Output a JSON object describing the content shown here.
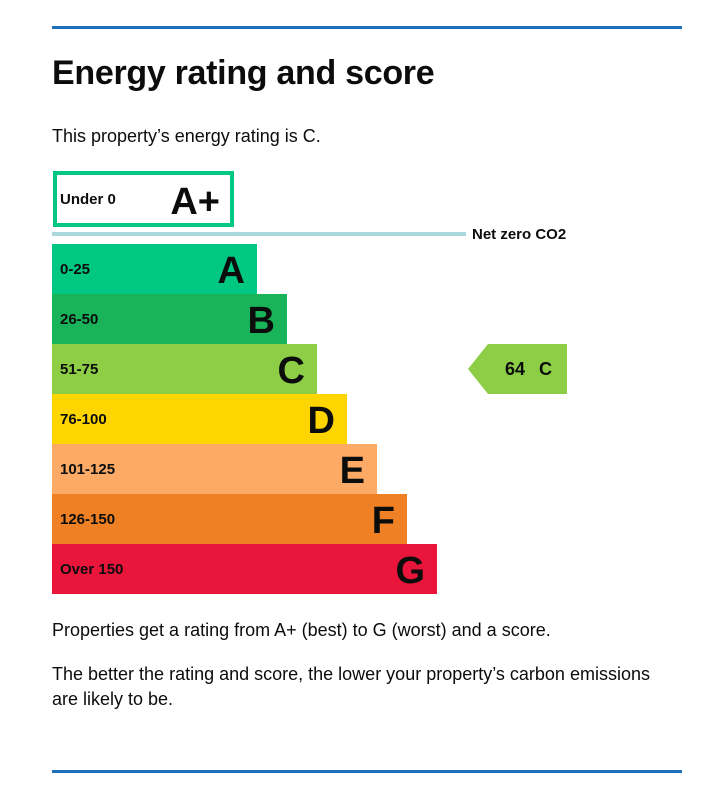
{
  "header": {
    "title": "Energy rating and score",
    "intro": "This property’s energy rating is C."
  },
  "chart_data": {
    "type": "bar",
    "title": "",
    "bands": [
      {
        "letter": "A+",
        "range": "Under 0",
        "color": "#00c781",
        "outlined": true
      },
      {
        "letter": "A",
        "range": "0-25",
        "color": "#00c781"
      },
      {
        "letter": "B",
        "range": "26-50",
        "color": "#19b459"
      },
      {
        "letter": "C",
        "range": "51-75",
        "color": "#8dce46"
      },
      {
        "letter": "D",
        "range": "76-100",
        "color": "#ffd500"
      },
      {
        "letter": "E",
        "range": "101-125",
        "color": "#fcaa65"
      },
      {
        "letter": "F",
        "range": "126-150",
        "color": "#ef8023"
      },
      {
        "letter": "G",
        "range": "Over 150",
        "color": "#e9153b"
      }
    ],
    "net_zero_label": "Net zero CO2",
    "net_zero_color": "#a8d8dc",
    "current": {
      "score": 64,
      "score_text": "64",
      "letter": "C",
      "color": "#8dce46"
    }
  },
  "footer": {
    "text1": "Properties get a rating from A+ (best) to G (worst) and a score.",
    "text2": "The better the rating and score, the lower your property’s carbon emissions are likely to be."
  }
}
